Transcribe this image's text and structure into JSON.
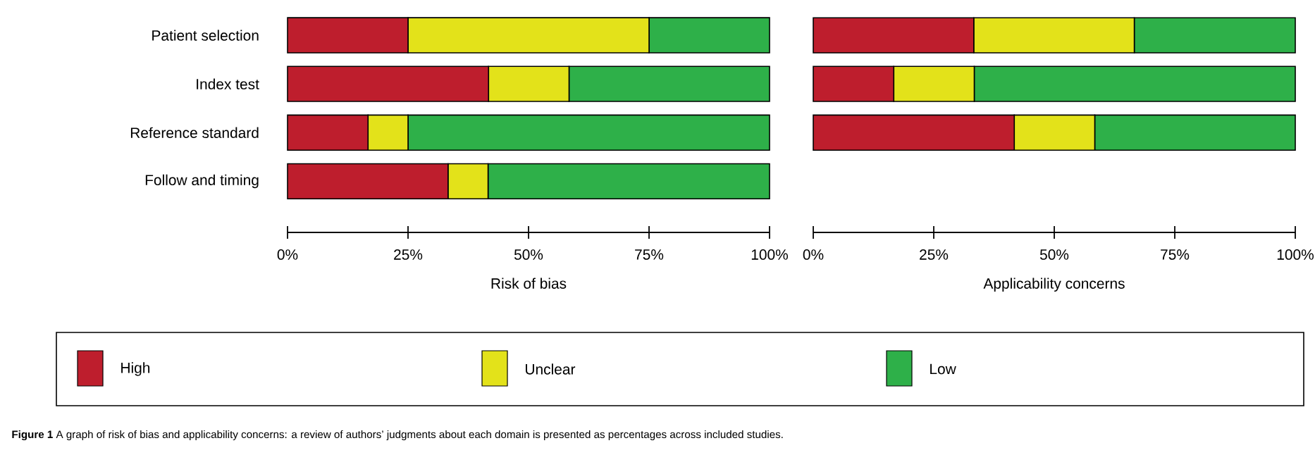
{
  "chart_data": [
    {
      "type": "bar",
      "orientation": "horizontal",
      "stacked": true,
      "xlabel": "Risk of bias",
      "categories": [
        "Patient selection",
        "Index test",
        "Reference standard",
        "Follow and timing"
      ],
      "series": [
        {
          "name": "High",
          "color": "#be1e2d",
          "values": [
            25,
            41.7,
            16.7,
            33.3
          ]
        },
        {
          "name": "Unclear",
          "color": "#e3e21a",
          "values": [
            50,
            16.7,
            8.3,
            8.3
          ]
        },
        {
          "name": "Low",
          "color": "#2eb049",
          "values": [
            25,
            41.6,
            75,
            58.4
          ]
        }
      ],
      "xlim": [
        0,
        100
      ],
      "xticks": [
        {
          "value": 0,
          "label": "0%"
        },
        {
          "value": 25,
          "label": "25%"
        },
        {
          "value": 50,
          "label": "50%"
        },
        {
          "value": 75,
          "label": "75%"
        },
        {
          "value": 100,
          "label": "100%"
        }
      ],
      "legend": "bottom",
      "annotations": [
        "**Figure 1** A graph of risk of bias and applicability concerns: a review of authors’ judgments about each domain is presented as percentages across included studies."
      ]
    },
    {
      "type": "bar",
      "orientation": "horizontal",
      "stacked": true,
      "xlabel": "Applicability concerns",
      "categories": [
        null,
        null,
        null
      ],
      "series": [
        {
          "color": "#be1e2d",
          "values": [
            33.3,
            16.7,
            41.7
          ]
        },
        {
          "color": "#e3e21a",
          "values": [
            33.3,
            16.7,
            16.7
          ]
        },
        {
          "color": "#2eb049",
          "values": [
            33.4,
            66.6,
            41.6
          ]
        }
      ],
      "xlim": [
        0,
        100
      ],
      "xticks": [
        {
          "value": 0,
          "label": "0%"
        },
        {
          "value": 25,
          "label": "25%"
        },
        {
          "value": 50,
          "label": "50%"
        },
        {
          "value": 75,
          "label": "75%"
        },
        {
          "value": 100,
          "label": "100%"
        }
      ],
      "tick_labels": "x"
    }
  ]
}
